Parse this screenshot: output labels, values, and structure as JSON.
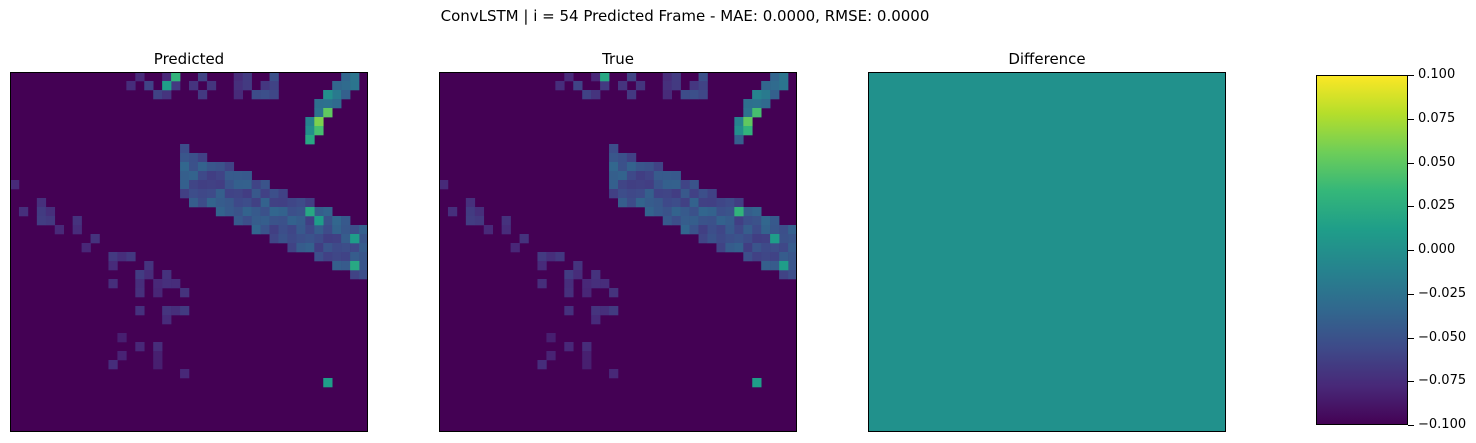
{
  "figure": {
    "suptitle": "ConvLSTM | i = 54 Predicted Frame - MAE: 0.0000, RMSE: 0.0000"
  },
  "panels": [
    {
      "title": "Predicted"
    },
    {
      "title": "True"
    },
    {
      "title": "Difference"
    }
  ],
  "colors": {
    "background_cell": "#440154",
    "difference_fill": "#21918c"
  },
  "chart_data": [
    {
      "type": "heatmap",
      "title": "Predicted",
      "grid_size": [
        40,
        40
      ],
      "colormap": "viridis",
      "axes_ticks": "hidden",
      "hot_cells": [
        {
          "row": 0,
          "col": 18,
          "value": 0.65
        },
        {
          "row": 1,
          "col": 17,
          "value": 0.55
        },
        {
          "row": 2,
          "col": 35,
          "value": 0.5
        },
        {
          "row": 4,
          "col": 35,
          "value": 0.75
        },
        {
          "row": 5,
          "col": 34,
          "value": 0.8
        },
        {
          "row": 6,
          "col": 34,
          "value": 0.7
        },
        {
          "row": 7,
          "col": 33,
          "value": 0.6
        },
        {
          "row": 15,
          "col": 33,
          "value": 0.6
        },
        {
          "row": 16,
          "col": 34,
          "value": 0.55
        },
        {
          "row": 18,
          "col": 38,
          "value": 0.55
        },
        {
          "row": 21,
          "col": 38,
          "value": 0.6
        },
        {
          "row": 34,
          "col": 35,
          "value": 0.55
        }
      ]
    },
    {
      "type": "heatmap",
      "title": "True",
      "grid_size": [
        40,
        40
      ],
      "colormap": "viridis",
      "axes_ticks": "hidden",
      "hot_cells": [
        {
          "row": 0,
          "col": 18,
          "value": 0.6
        },
        {
          "row": 2,
          "col": 35,
          "value": 0.45
        },
        {
          "row": 4,
          "col": 35,
          "value": 0.7
        },
        {
          "row": 5,
          "col": 34,
          "value": 0.75
        },
        {
          "row": 6,
          "col": 34,
          "value": 0.65
        },
        {
          "row": 15,
          "col": 33,
          "value": 0.65
        },
        {
          "row": 18,
          "col": 37,
          "value": 0.55
        },
        {
          "row": 21,
          "col": 38,
          "value": 0.55
        },
        {
          "row": 34,
          "col": 35,
          "value": 0.55
        }
      ]
    },
    {
      "type": "heatmap",
      "title": "Difference",
      "grid_size": [
        40,
        40
      ],
      "colormap": "viridis",
      "uniform_value": 0.0,
      "axes_ticks": "hidden"
    }
  ],
  "colorbar": {
    "range": [
      -0.1,
      0.1
    ],
    "ticks": [
      "0.100",
      "0.075",
      "0.050",
      "0.025",
      "0.000",
      "−0.025",
      "−0.050",
      "−0.075",
      "−0.100"
    ]
  }
}
